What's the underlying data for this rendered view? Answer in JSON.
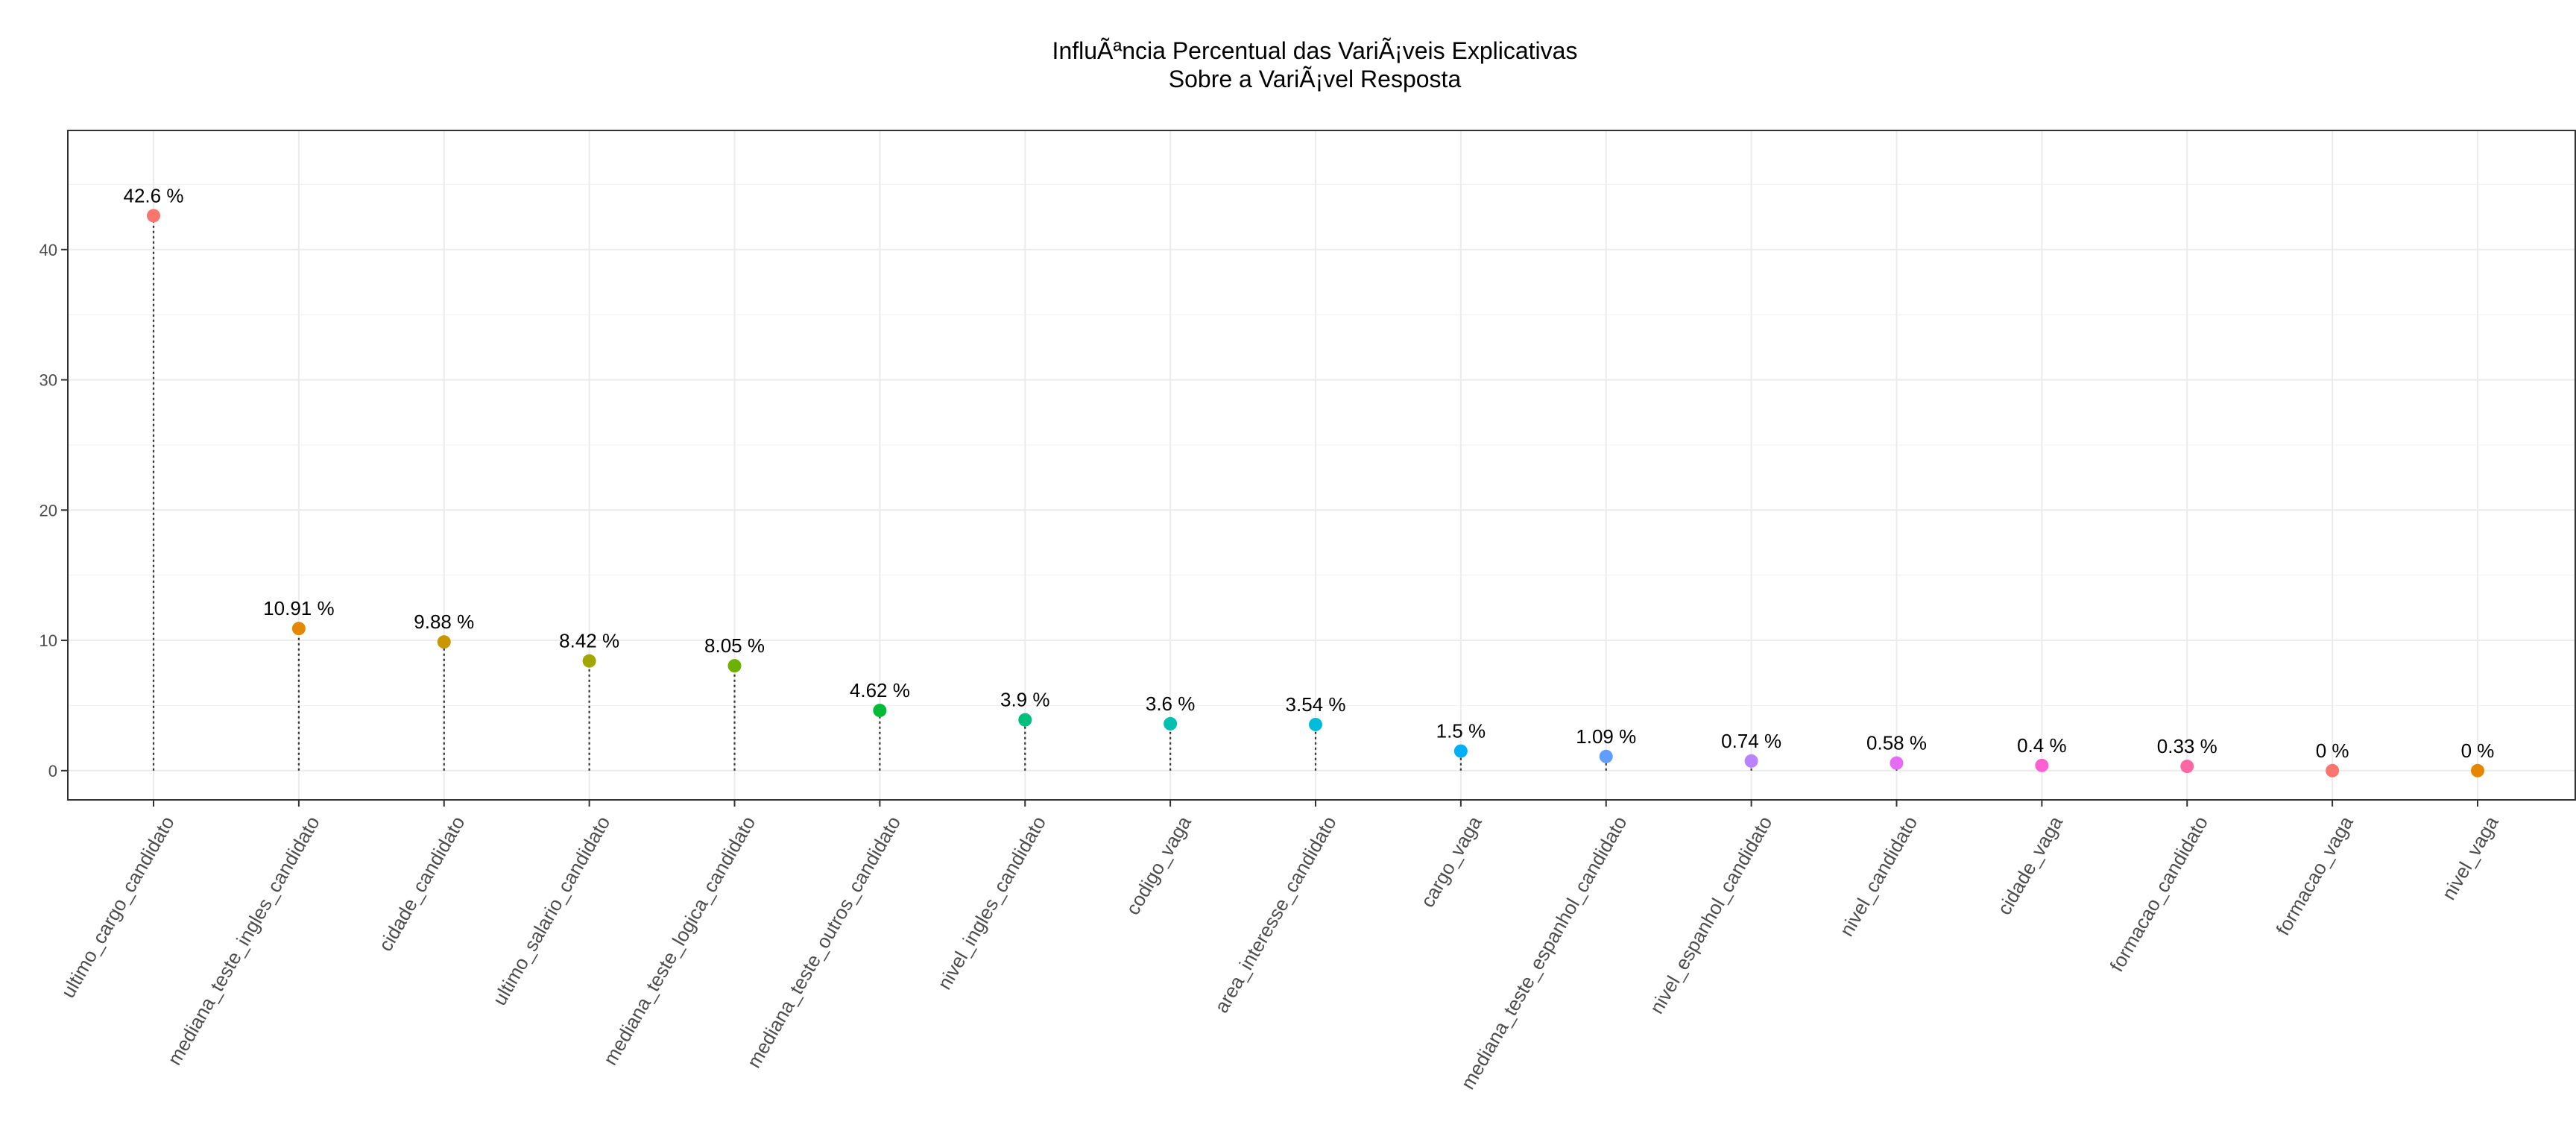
{
  "chart_data": {
    "type": "scatter",
    "title": [
      "InfluÃªncia Percentual das VariÃ¡veis Explicativas",
      "Sobre a VariÃ¡vel Resposta"
    ],
    "xlabel": "",
    "ylabel": "",
    "ylim": [
      -2.3,
      49.2
    ],
    "y_ticks": [
      0,
      10,
      20,
      30,
      40
    ],
    "y_tick_labels": [
      "0",
      "10",
      "20",
      "30",
      "40"
    ],
    "grid": true,
    "legend": "none",
    "categories": [
      "ultimo_cargo_candidato",
      "mediana_teste_ingles_candidato",
      "cidade_candidato",
      "ultimo_salario_candidato",
      "mediana_teste_logica_candidato",
      "mediana_teste_outros_candidato",
      "nivel_ingles_candidato",
      "codigo_vaga",
      "area_interesse_candidato",
      "cargo_vaga",
      "mediana_teste_espanhol_candidato",
      "nivel_espanhol_candidato",
      "nivel_candidato",
      "cidade_vaga",
      "formacao_candidato",
      "formacao_vaga",
      "nivel_vaga"
    ],
    "values": [
      42.6,
      10.91,
      9.88,
      8.42,
      8.05,
      4.62,
      3.9,
      3.6,
      3.54,
      1.5,
      1.09,
      0.74,
      0.58,
      0.4,
      0.33,
      0,
      0
    ],
    "data_labels": [
      "42.6 %",
      "10.91 %",
      "9.88 %",
      "8.42 %",
      "8.05 %",
      "4.62 %",
      "3.9 %",
      "3.6 %",
      "3.54 %",
      "1.5 %",
      "1.09 %",
      "0.74 %",
      "0.58 %",
      "0.4 %",
      "0.33 %",
      "0 %",
      "0 %"
    ],
    "colors": [
      "#F8766D",
      "#E58700",
      "#C99800",
      "#A3A500",
      "#6BB100",
      "#00BA38",
      "#00BF7D",
      "#00C0AF",
      "#00BCD8",
      "#00B0F6",
      "#619CFF",
      "#B983FF",
      "#E76BF3",
      "#FD61D1",
      "#FF67A4",
      "#F8766D",
      "#E58700"
    ]
  }
}
